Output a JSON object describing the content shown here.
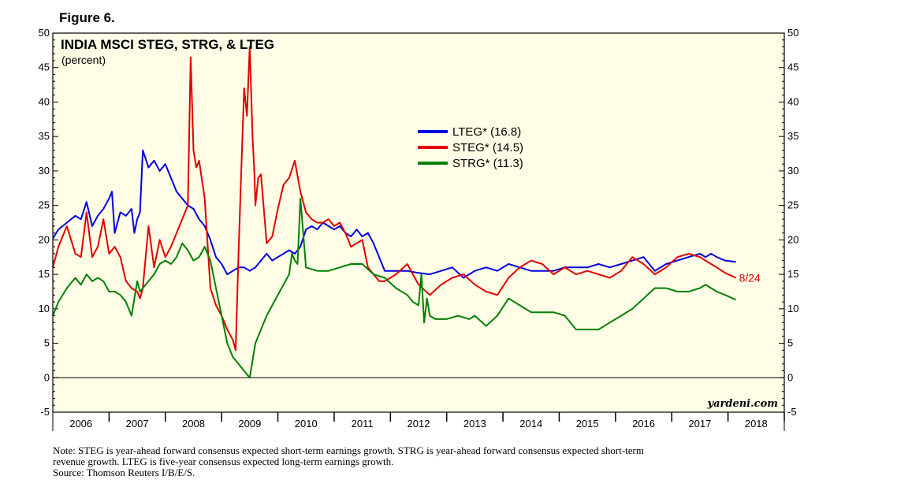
{
  "figure_label": "Figure 6.",
  "chart_data": {
    "type": "line",
    "title": "INDIA MSCI STEG, STRG, & LTEG",
    "subtitle": "(percent)",
    "xlabel": "",
    "ylabel": "",
    "xlim": [
      2005.5,
      2018.5
    ],
    "ylim": [
      -5,
      50
    ],
    "yticks": [
      -5,
      0,
      5,
      10,
      15,
      20,
      25,
      30,
      35,
      40,
      45,
      50
    ],
    "ytick_labels": [
      "-5",
      "0",
      "5",
      "10",
      "15",
      "20",
      "25",
      "30",
      "35",
      "40",
      "45",
      "50"
    ],
    "xtick_labels": [
      "2006",
      "2007",
      "2008",
      "2009",
      "2010",
      "2011",
      "2012",
      "2013",
      "2014",
      "2015",
      "2016",
      "2017",
      "2018"
    ],
    "grid": false,
    "reference_line": 0,
    "background_color": "#fffde6",
    "legend_position": "upper-center",
    "end_label": "8/24",
    "end_label_color": "#e00000",
    "watermark": "yardeni.com",
    "series": [
      {
        "name": "LTEG* (16.8)",
        "color": "#0000e0",
        "x": [
          2005.5,
          2005.6,
          2005.75,
          2005.9,
          2006.0,
          2006.1,
          2006.2,
          2006.3,
          2006.4,
          2006.5,
          2006.55,
          2006.6,
          2006.7,
          2006.8,
          2006.9,
          2006.95,
          2007.0,
          2007.05,
          2007.1,
          2007.2,
          2007.3,
          2007.4,
          2007.5,
          2007.6,
          2007.7,
          2007.8,
          2007.9,
          2008.0,
          2008.1,
          2008.2,
          2008.3,
          2008.4,
          2008.5,
          2008.6,
          2008.7,
          2008.8,
          2008.9,
          2009.0,
          2009.1,
          2009.2,
          2009.3,
          2009.4,
          2009.5,
          2009.6,
          2009.7,
          2009.8,
          2009.9,
          2010.0,
          2010.1,
          2010.2,
          2010.3,
          2010.4,
          2010.5,
          2010.6,
          2010.7,
          2010.8,
          2010.9,
          2011.0,
          2011.1,
          2011.2,
          2011.3,
          2011.4,
          2011.5,
          2011.6,
          2011.8,
          2012.0,
          2012.2,
          2012.4,
          2012.6,
          2012.8,
          2013.0,
          2013.2,
          2013.4,
          2013.6,
          2013.8,
          2014.0,
          2014.2,
          2014.4,
          2014.6,
          2014.8,
          2015.0,
          2015.2,
          2015.4,
          2015.6,
          2015.8,
          2016.0,
          2016.2,
          2016.4,
          2016.6,
          2016.8,
          2017.0,
          2017.1,
          2017.2,
          2017.3,
          2017.45,
          2017.64
        ],
        "values": [
          20.2,
          21.5,
          22.5,
          23.5,
          23.0,
          25.5,
          22.0,
          23.5,
          24.5,
          26.0,
          27.0,
          21.0,
          24.0,
          23.5,
          24.5,
          21.0,
          23.0,
          24.0,
          33.0,
          30.5,
          31.5,
          30.0,
          31.0,
          29.0,
          27.0,
          26.0,
          25.0,
          24.5,
          23.0,
          22.0,
          20.0,
          17.5,
          16.5,
          15.0,
          15.5,
          16.0,
          16.0,
          15.5,
          16.0,
          17.0,
          18.0,
          17.0,
          17.5,
          18.0,
          18.5,
          18.0,
          19.0,
          21.5,
          22.0,
          21.5,
          22.5,
          22.0,
          21.5,
          22.0,
          21.0,
          20.5,
          21.5,
          20.5,
          21.0,
          19.5,
          17.5,
          15.5,
          15.5,
          15.5,
          15.5,
          15.2,
          15.0,
          15.5,
          16.0,
          14.5,
          15.5,
          16.0,
          15.5,
          16.5,
          16.0,
          15.5,
          15.5,
          15.5,
          16.0,
          16.0,
          16.0,
          16.5,
          16.0,
          16.5,
          17.0,
          17.5,
          15.5,
          16.5,
          17.0,
          17.5,
          18.0,
          17.5,
          18.0,
          17.5,
          17.0,
          16.8
        ]
      },
      {
        "name": "STEG* (14.5)",
        "color": "#e00000",
        "x": [
          2005.5,
          2005.6,
          2005.75,
          2005.9,
          2006.0,
          2006.1,
          2006.2,
          2006.3,
          2006.4,
          2006.5,
          2006.6,
          2006.7,
          2006.8,
          2006.9,
          2007.0,
          2007.05,
          2007.1,
          2007.2,
          2007.3,
          2007.4,
          2007.5,
          2007.6,
          2007.7,
          2007.8,
          2007.9,
          2007.95,
          2008.0,
          2008.05,
          2008.1,
          2008.2,
          2008.3,
          2008.4,
          2008.5,
          2008.6,
          2008.7,
          2008.75,
          2008.8,
          2008.85,
          2008.9,
          2008.95,
          2009.0,
          2009.05,
          2009.08,
          2009.1,
          2009.15,
          2009.2,
          2009.3,
          2009.4,
          2009.5,
          2009.6,
          2009.7,
          2009.8,
          2009.9,
          2010.0,
          2010.1,
          2010.2,
          2010.3,
          2010.4,
          2010.5,
          2010.6,
          2010.7,
          2010.8,
          2010.9,
          2011.0,
          2011.1,
          2011.2,
          2011.3,
          2011.4,
          2011.6,
          2011.8,
          2012.0,
          2012.2,
          2012.4,
          2012.6,
          2012.8,
          2013.0,
          2013.2,
          2013.4,
          2013.6,
          2013.8,
          2014.0,
          2014.2,
          2014.4,
          2014.6,
          2014.8,
          2015.0,
          2015.2,
          2015.4,
          2015.6,
          2015.8,
          2016.0,
          2016.2,
          2016.4,
          2016.6,
          2016.8,
          2017.0,
          2017.1,
          2017.2,
          2017.3,
          2017.45,
          2017.64
        ],
        "values": [
          16.0,
          19.0,
          22.0,
          18.0,
          17.5,
          24.0,
          17.5,
          19.0,
          23.0,
          18.0,
          19.0,
          17.5,
          14.0,
          13.0,
          12.5,
          11.5,
          13.0,
          22.0,
          16.0,
          20.0,
          17.5,
          19.0,
          21.0,
          23.0,
          25.0,
          46.5,
          33.0,
          30.5,
          31.5,
          26.0,
          13.0,
          10.5,
          9.0,
          7.0,
          5.5,
          4.0,
          18.0,
          30.0,
          42.0,
          38.0,
          48.0,
          35.0,
          30.0,
          25.0,
          29.0,
          29.5,
          19.5,
          20.5,
          24.5,
          28.0,
          29.0,
          31.5,
          27.0,
          24.0,
          23.0,
          22.5,
          22.5,
          23.0,
          22.0,
          22.5,
          21.0,
          19.0,
          19.5,
          20.0,
          16.0,
          15.0,
          14.0,
          14.0,
          15.0,
          16.5,
          13.5,
          12.0,
          13.5,
          14.5,
          15.0,
          13.5,
          12.5,
          12.0,
          14.5,
          16.0,
          17.0,
          16.5,
          15.0,
          16.0,
          15.0,
          15.5,
          15.0,
          14.5,
          15.5,
          17.5,
          16.5,
          15.0,
          16.0,
          17.5,
          18.0,
          17.5,
          17.0,
          16.5,
          16.0,
          15.2,
          14.5
        ]
      },
      {
        "name": "STRG* (11.3)",
        "color": "#008000",
        "x": [
          2005.5,
          2005.6,
          2005.75,
          2005.9,
          2006.0,
          2006.1,
          2006.2,
          2006.3,
          2006.4,
          2006.5,
          2006.6,
          2006.7,
          2006.8,
          2006.9,
          2007.0,
          2007.05,
          2007.1,
          2007.2,
          2007.3,
          2007.4,
          2007.5,
          2007.6,
          2007.7,
          2007.8,
          2007.9,
          2008.0,
          2008.1,
          2008.2,
          2008.3,
          2008.4,
          2008.5,
          2008.6,
          2008.7,
          2008.8,
          2008.9,
          2009.0,
          2009.1,
          2009.2,
          2009.3,
          2009.4,
          2009.5,
          2009.6,
          2009.7,
          2009.75,
          2009.8,
          2009.85,
          2009.9,
          2010.0,
          2010.2,
          2010.4,
          2010.6,
          2010.8,
          2011.0,
          2011.2,
          2011.4,
          2011.6,
          2011.8,
          2011.9,
          2012.0,
          2012.05,
          2012.1,
          2012.15,
          2012.2,
          2012.3,
          2012.5,
          2012.7,
          2012.9,
          2013.0,
          2013.2,
          2013.4,
          2013.6,
          2013.8,
          2014.0,
          2014.2,
          2014.4,
          2014.6,
          2014.8,
          2015.0,
          2015.2,
          2015.4,
          2015.6,
          2015.8,
          2016.0,
          2016.2,
          2016.4,
          2016.6,
          2016.8,
          2017.0,
          2017.1,
          2017.2,
          2017.3,
          2017.45,
          2017.64
        ],
        "values": [
          9.0,
          11.0,
          13.0,
          14.5,
          13.5,
          15.0,
          14.0,
          14.5,
          14.0,
          12.5,
          12.5,
          12.0,
          11.0,
          9.0,
          14.0,
          12.5,
          13.0,
          14.0,
          15.0,
          16.5,
          17.0,
          16.5,
          17.5,
          19.5,
          18.5,
          17.0,
          17.5,
          19.0,
          17.0,
          13.0,
          9.0,
          5.0,
          3.0,
          2.0,
          1.0,
          0.0,
          5.0,
          7.0,
          9.0,
          10.5,
          12.0,
          13.5,
          15.0,
          18.0,
          17.0,
          16.5,
          26.0,
          16.0,
          15.5,
          15.5,
          16.0,
          16.5,
          16.5,
          15.0,
          14.5,
          13.0,
          12.0,
          11.0,
          10.5,
          15.0,
          8.0,
          11.5,
          9.0,
          8.5,
          8.5,
          9.0,
          8.5,
          9.0,
          7.5,
          9.0,
          11.5,
          10.5,
          9.5,
          9.5,
          9.5,
          9.0,
          7.0,
          7.0,
          7.0,
          8.0,
          9.0,
          10.0,
          11.5,
          13.0,
          13.0,
          12.5,
          12.5,
          13.0,
          13.5,
          13.0,
          12.5,
          12.0,
          11.3
        ]
      }
    ]
  },
  "notes": [
    "Note: STEG is year-ahead forward consensus expected short-term earnings growth. STRG is year-ahead forward consensus expected short-term",
    "revenue growth. LTEG is five-year consensus expected long-term earnings growth.",
    "Source: Thomson Reuters I/B/E/S."
  ]
}
